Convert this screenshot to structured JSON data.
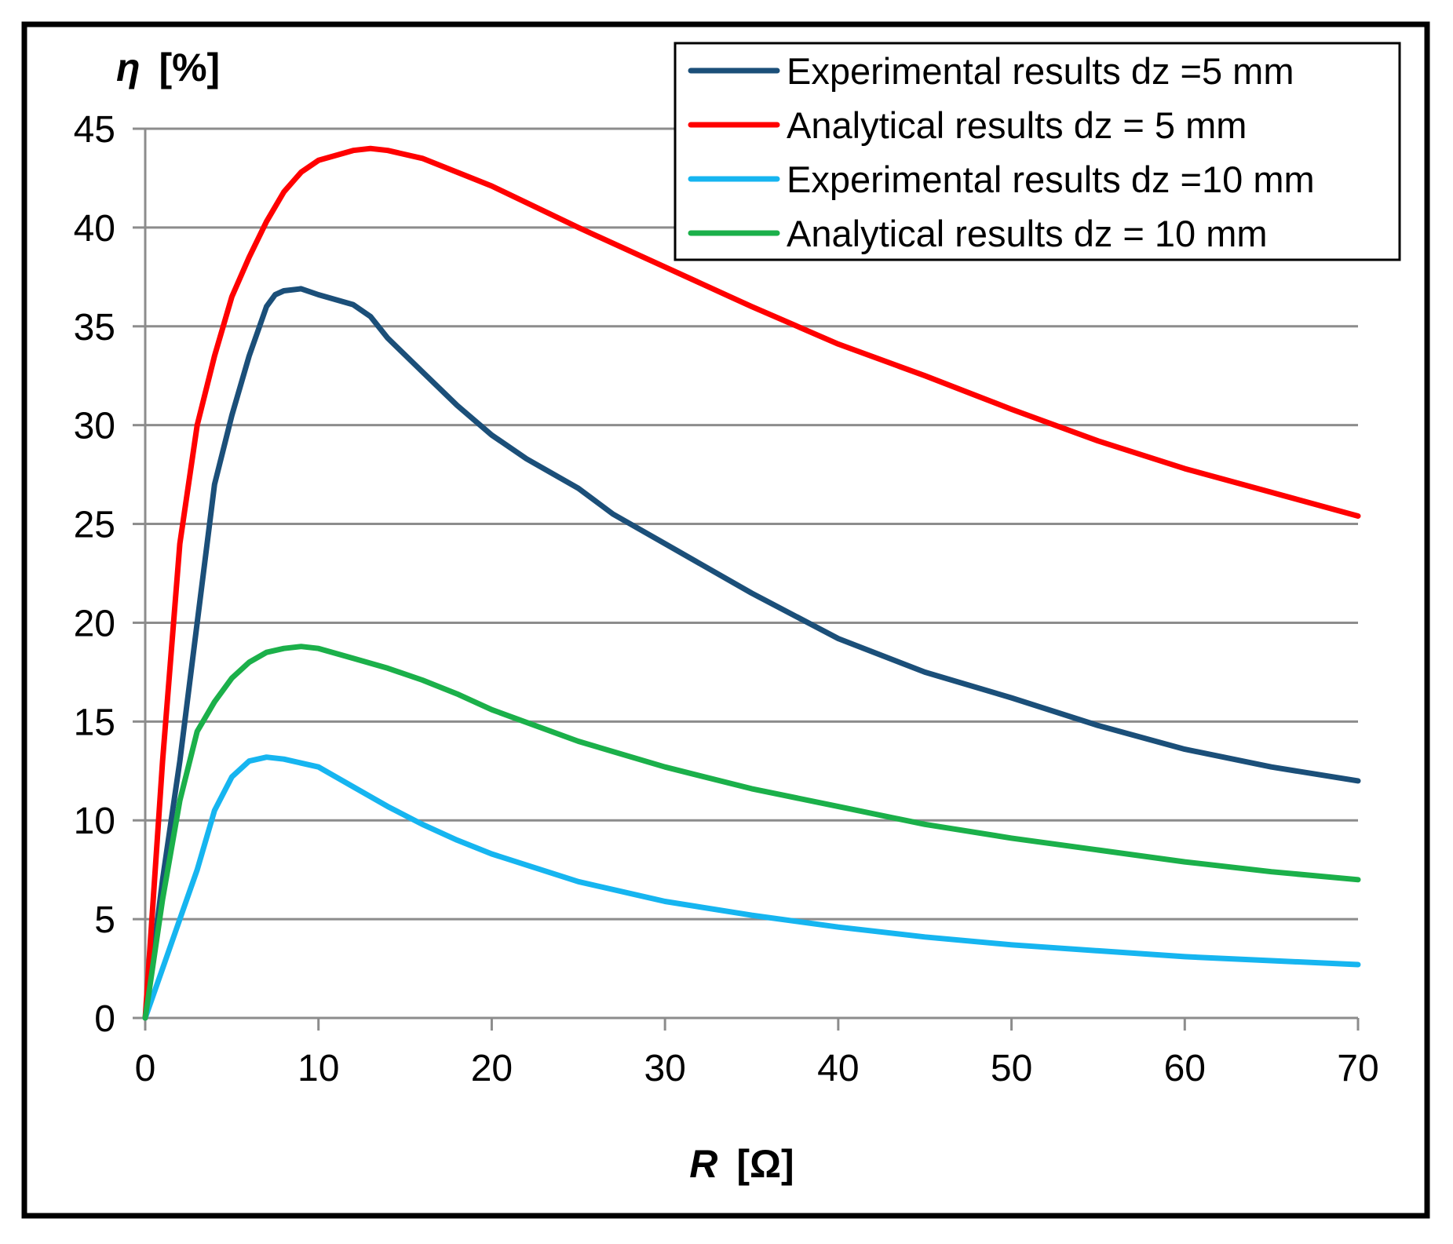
{
  "chart_data": {
    "type": "line",
    "title": "",
    "ylabel_symbol": "η",
    "ylabel_unit": "[%]",
    "xlabel_symbol": "R",
    "xlabel_unit": "[Ω]",
    "xlim": [
      0,
      70
    ],
    "ylim": [
      0,
      45
    ],
    "xticks": [
      0,
      10,
      20,
      30,
      40,
      50,
      60,
      70
    ],
    "yticks": [
      0,
      5,
      10,
      15,
      20,
      25,
      30,
      35,
      40,
      45
    ],
    "grid": "horizontal",
    "legend_position": "top-right",
    "series": [
      {
        "name": "Experimental results dz =5 mm",
        "color": "#1b4f79",
        "x": [
          0,
          1,
          2,
          3,
          4,
          5,
          6,
          7,
          7.5,
          8,
          9,
          10,
          12,
          13,
          14,
          16,
          18,
          20,
          22,
          25,
          27,
          30,
          35,
          40,
          45,
          50,
          55,
          60,
          65,
          70
        ],
        "y": [
          0,
          7,
          13,
          20,
          27,
          30.5,
          33.5,
          36,
          36.6,
          36.8,
          36.9,
          36.6,
          36.1,
          35.5,
          34.4,
          32.7,
          31,
          29.5,
          28.3,
          26.8,
          25.5,
          24,
          21.5,
          19.2,
          17.5,
          16.2,
          14.8,
          13.6,
          12.7,
          12
        ]
      },
      {
        "name": "Analytical results dz = 5 mm",
        "color": "#ff0000",
        "x": [
          0,
          1,
          2,
          3,
          4,
          5,
          6,
          7,
          8,
          9,
          10,
          12,
          13,
          14,
          16,
          18,
          20,
          25,
          30,
          35,
          40,
          45,
          50,
          55,
          60,
          65,
          70
        ],
        "y": [
          0,
          13,
          24,
          30,
          33.5,
          36.5,
          38.5,
          40.3,
          41.8,
          42.8,
          43.4,
          43.9,
          44,
          43.9,
          43.5,
          42.8,
          42.1,
          40,
          38,
          36,
          34.1,
          32.5,
          30.8,
          29.2,
          27.8,
          26.6,
          25.4
        ]
      },
      {
        "name": "Experimental results dz =10 mm",
        "color": "#16b5f0",
        "x": [
          0,
          1,
          2,
          3,
          4,
          5,
          6,
          7,
          8,
          10,
          12,
          14,
          16,
          18,
          20,
          25,
          30,
          35,
          40,
          45,
          50,
          55,
          60,
          65,
          70
        ],
        "y": [
          0,
          2.5,
          5,
          7.5,
          10.5,
          12.2,
          13,
          13.2,
          13.1,
          12.7,
          11.7,
          10.7,
          9.8,
          9,
          8.3,
          6.9,
          5.9,
          5.2,
          4.6,
          4.1,
          3.7,
          3.4,
          3.1,
          2.9,
          2.7
        ]
      },
      {
        "name": "Analytical results dz = 10 mm",
        "color": "#1bb04a",
        "x": [
          0,
          1,
          2,
          3,
          4,
          5,
          6,
          7,
          8,
          9,
          10,
          12,
          14,
          16,
          18,
          20,
          25,
          30,
          35,
          40,
          45,
          50,
          55,
          60,
          65,
          70
        ],
        "y": [
          0,
          6,
          11,
          14.5,
          16,
          17.2,
          18,
          18.5,
          18.7,
          18.8,
          18.7,
          18.2,
          17.7,
          17.1,
          16.4,
          15.6,
          14,
          12.7,
          11.6,
          10.7,
          9.8,
          9.1,
          8.5,
          7.9,
          7.4,
          7
        ]
      }
    ]
  }
}
